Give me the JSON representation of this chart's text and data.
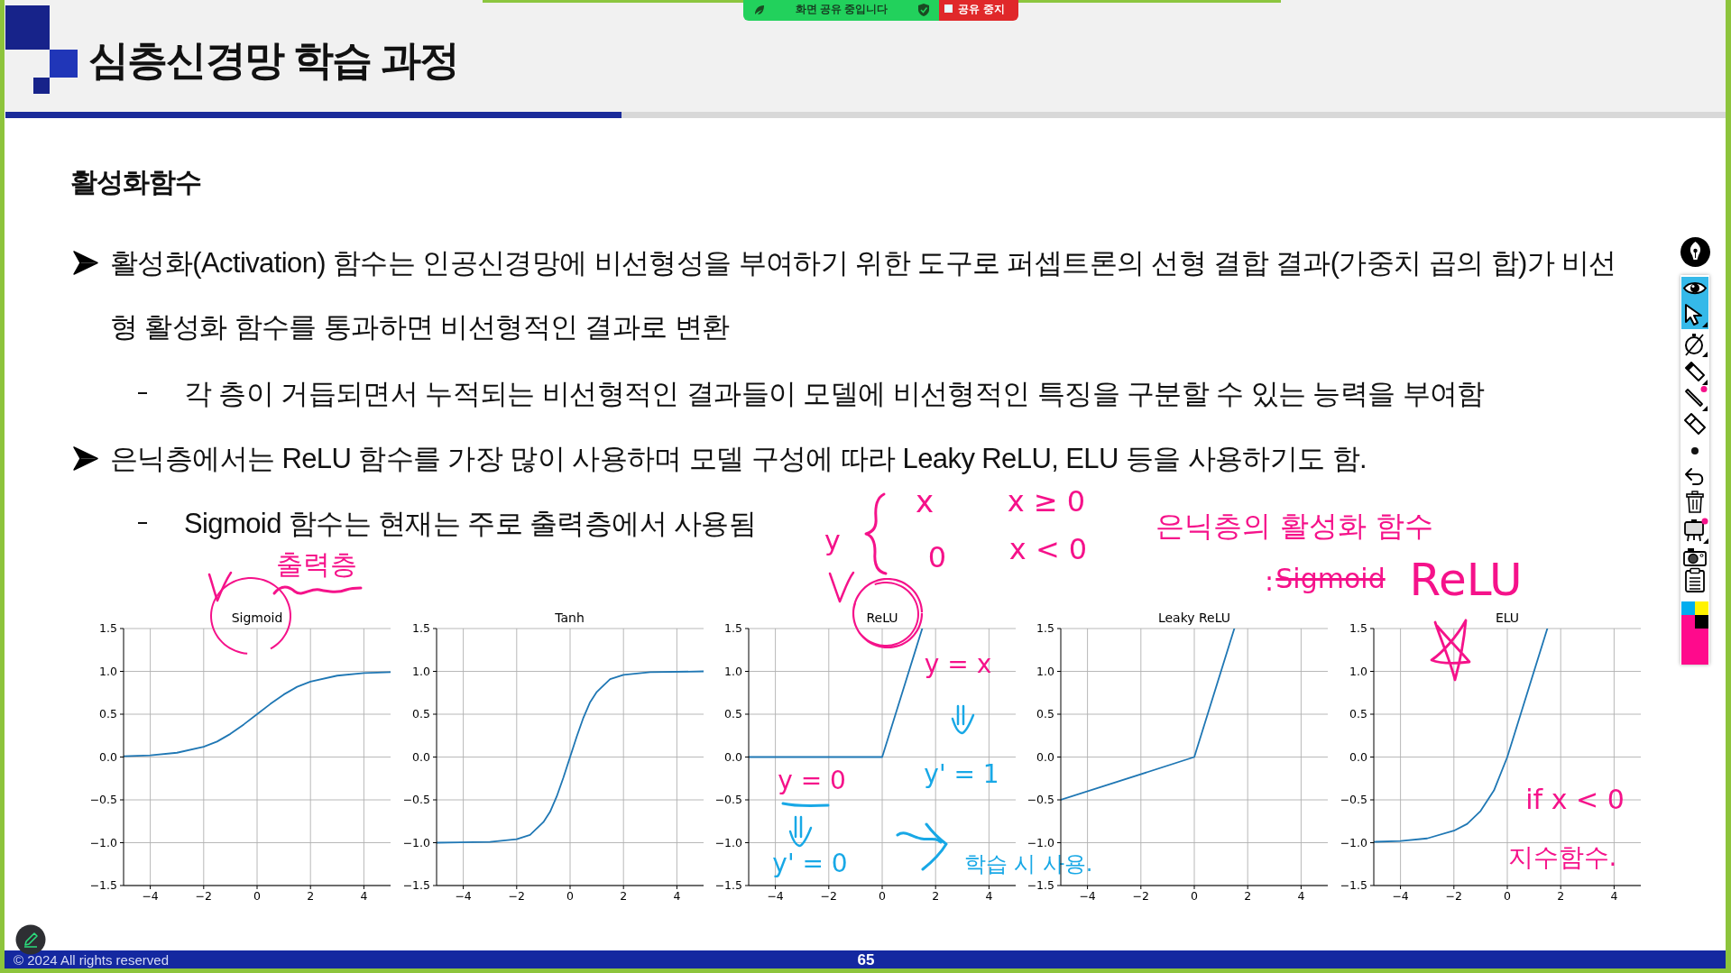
{
  "chart_data": [
    {
      "type": "other",
      "title": "심층신경망 학습 과정",
      "subtitle": "활성화함수",
      "annotations": [
        "활성화(Activation) 함수는 인공신경망에 비선형성을 부여하기 위한 도구로 퍼셉트론의 선형 결합 결과(가중치 곱의 합)가 비선형 활성화 함수를 통과하면 비선형적인 결과로 변환",
        "각 층이 거듭되면서 누적되는 비선형적인 결과들이 모델에 비선형적인 특징을 구분할 수 있는 능력을 부여함",
        "은닉층에서는 ReLU 함수를 가장 많이 사용하며 모델 구성에 따라 Leaky ReLU, ELU 등을 사용하기도 함.",
        "Sigmoid 함수는 현재는 주로 출력층에서 사용됨",
        "화면 공유 중입니다",
        "공유 중지",
        "© 2024 All rights reserved",
        "65"
      ]
    },
    {
      "type": "line",
      "title": "Sigmoid",
      "x": [
        -5,
        -4,
        -3,
        -2,
        -1.5,
        -1,
        -0.5,
        0,
        0.5,
        1,
        1.5,
        2,
        3,
        4,
        5
      ],
      "values": [
        0.01,
        0.02,
        0.05,
        0.12,
        0.18,
        0.27,
        0.38,
        0.5,
        0.62,
        0.73,
        0.82,
        0.88,
        0.95,
        0.98,
        0.99
      ],
      "color": "#1f77b4",
      "xlim": [
        -5,
        5
      ],
      "xticks": [
        -4,
        -2,
        0,
        2,
        4
      ],
      "ylim": [
        -1.5,
        1.5
      ],
      "yticks": [
        {
          "value": -1.5,
          "label": "−1.5"
        },
        {
          "value": -1,
          "label": "−1.0"
        },
        {
          "value": -0.5,
          "label": "−0.5"
        },
        {
          "value": 0,
          "label": "0.0"
        },
        {
          "value": 0.5,
          "label": "0.5"
        },
        {
          "value": 1,
          "label": "1.0"
        },
        {
          "value": 1.5,
          "label": "1.5"
        }
      ],
      "grid": true,
      "annotations": [
        "출력층"
      ]
    },
    {
      "type": "line",
      "title": "Tanh",
      "x": [
        -5,
        -3,
        -2,
        -1.5,
        -1,
        -0.75,
        -0.5,
        -0.25,
        0,
        0.25,
        0.5,
        0.75,
        1,
        1.5,
        2,
        3,
        5
      ],
      "values": [
        -1,
        -0.99,
        -0.96,
        -0.91,
        -0.76,
        -0.64,
        -0.46,
        -0.24,
        0,
        0.24,
        0.46,
        0.64,
        0.76,
        0.91,
        0.96,
        0.99,
        1
      ],
      "color": "#1f77b4",
      "xlim": [
        -5,
        5
      ],
      "xticks": [
        -4,
        -2,
        0,
        2,
        4
      ],
      "ylim": [
        -1.5,
        1.5
      ],
      "yticks": [
        {
          "value": -1.5,
          "label": "−1.5"
        },
        {
          "value": -1,
          "label": "−1.0"
        },
        {
          "value": -0.5,
          "label": "−0.5"
        },
        {
          "value": 0,
          "label": "0.0"
        },
        {
          "value": 0.5,
          "label": "0.5"
        },
        {
          "value": 1,
          "label": "1.0"
        },
        {
          "value": 1.5,
          "label": "1.5"
        }
      ],
      "grid": true
    },
    {
      "type": "line",
      "title": "ReLU",
      "x": [
        -5,
        0,
        1.5
      ],
      "values": [
        0,
        0,
        1.5
      ],
      "color": "#1f77b4",
      "xlim": [
        -5,
        5
      ],
      "xticks": [
        -4,
        -2,
        0,
        2,
        4
      ],
      "ylim": [
        -1.5,
        1.5
      ],
      "yticks": [
        {
          "value": -1.5,
          "label": "−1.5"
        },
        {
          "value": -1,
          "label": "−1.0"
        },
        {
          "value": -0.5,
          "label": "−0.5"
        },
        {
          "value": 0,
          "label": "0.0"
        },
        {
          "value": 0.5,
          "label": "0.5"
        },
        {
          "value": 1,
          "label": "1.0"
        },
        {
          "value": 1.5,
          "label": "1.5"
        }
      ],
      "grid": true,
      "annotations": [
        "y",
        "x",
        "x ≥ 0",
        "0",
        "x < 0",
        "y = x",
        "y' = 1",
        "y = 0",
        "y' = 0",
        "학습 시 사용."
      ]
    },
    {
      "type": "line",
      "title": "Leaky ReLU",
      "x": [
        -5,
        0,
        1.5
      ],
      "values": [
        -0.5,
        0,
        1.5
      ],
      "color": "#1f77b4",
      "xlim": [
        -5,
        5
      ],
      "xticks": [
        -4,
        -2,
        0,
        2,
        4
      ],
      "ylim": [
        -1.5,
        1.5
      ],
      "yticks": [
        {
          "value": -1.5,
          "label": "−1.5"
        },
        {
          "value": -1,
          "label": "−1.0"
        },
        {
          "value": -0.5,
          "label": "−0.5"
        },
        {
          "value": 0,
          "label": "0.0"
        },
        {
          "value": 0.5,
          "label": "0.5"
        },
        {
          "value": 1,
          "label": "1.0"
        },
        {
          "value": 1.5,
          "label": "1.5"
        }
      ],
      "grid": true
    },
    {
      "type": "line",
      "title": "ELU",
      "x": [
        -5,
        -4,
        -3,
        -2,
        -1.5,
        -1,
        -0.5,
        0,
        1.5
      ],
      "values": [
        -0.99,
        -0.98,
        -0.95,
        -0.86,
        -0.78,
        -0.63,
        -0.39,
        0,
        1.5
      ],
      "color": "#1f77b4",
      "xlim": [
        -5,
        5
      ],
      "xticks": [
        -4,
        -2,
        0,
        2,
        4
      ],
      "ylim": [
        -1.5,
        1.5
      ],
      "yticks": [
        {
          "value": -1.5,
          "label": "−1.5"
        },
        {
          "value": -1,
          "label": "−1.0"
        },
        {
          "value": -0.5,
          "label": "−0.5"
        },
        {
          "value": 0,
          "label": "0.0"
        },
        {
          "value": 0.5,
          "label": "0.5"
        },
        {
          "value": 1,
          "label": "1.0"
        },
        {
          "value": 1.5,
          "label": "1.5"
        }
      ],
      "grid": true,
      "annotations": [
        "은닉층의 활성화 함수",
        ":",
        "Sigmoid",
        "ReLU",
        "if x < 0",
        "지수함수."
      ]
    }
  ]
}
